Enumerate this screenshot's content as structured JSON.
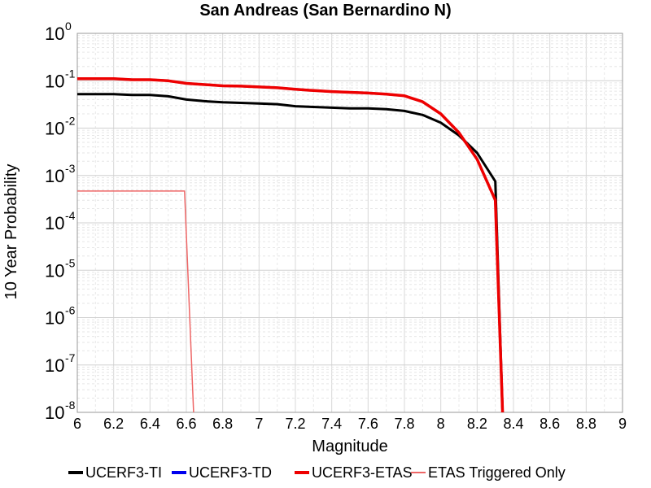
{
  "chart_data": {
    "type": "line",
    "title": "San Andreas (San Bernardino N)",
    "xlabel": "Magnitude",
    "ylabel": "10 Year Probability",
    "xlim": [
      6,
      9
    ],
    "ylim": [
      1e-08,
      1
    ],
    "yscale": "log",
    "grid": true,
    "legend_position": "bottom",
    "x_ticks": [
      "6",
      "6.2",
      "6.4",
      "6.6",
      "6.8",
      "7",
      "7.2",
      "7.4",
      "7.6",
      "7.8",
      "8",
      "8.2",
      "8.4",
      "8.6",
      "8.8",
      "9"
    ],
    "y_ticks": [
      {
        "base": "10",
        "exp": "0",
        "value": 1
      },
      {
        "base": "10",
        "exp": "-1",
        "value": 0.1
      },
      {
        "base": "10",
        "exp": "-2",
        "value": 0.01
      },
      {
        "base": "10",
        "exp": "-3",
        "value": 0.001
      },
      {
        "base": "10",
        "exp": "-4",
        "value": 0.0001
      },
      {
        "base": "10",
        "exp": "-5",
        "value": 1e-05
      },
      {
        "base": "10",
        "exp": "-6",
        "value": 1e-06
      },
      {
        "base": "10",
        "exp": "-7",
        "value": 1e-07
      },
      {
        "base": "10",
        "exp": "-8",
        "value": 1e-08
      }
    ],
    "series": [
      {
        "name": "UCERF3-TI",
        "color": "#000000",
        "x": [
          6.0,
          6.2,
          6.3,
          6.4,
          6.5,
          6.6,
          6.7,
          6.8,
          6.9,
          7.0,
          7.1,
          7.2,
          7.3,
          7.4,
          7.5,
          7.6,
          7.7,
          7.8,
          7.9,
          8.0,
          8.1,
          8.2,
          8.3,
          8.34
        ],
        "y": [
          0.052,
          0.052,
          0.05,
          0.05,
          0.047,
          0.04,
          0.037,
          0.035,
          0.034,
          0.033,
          0.032,
          0.029,
          0.028,
          0.027,
          0.026,
          0.026,
          0.025,
          0.023,
          0.019,
          0.013,
          0.007,
          0.003,
          0.00075,
          1e-08
        ]
      },
      {
        "name": "UCERF3-TD",
        "color": "#0000ee",
        "x": [
          6.0,
          6.2,
          6.3,
          6.4,
          6.5,
          6.6,
          6.7,
          6.8,
          6.9,
          7.0,
          7.1,
          7.2,
          7.3,
          7.4,
          7.5,
          7.6,
          7.7,
          7.8,
          7.9,
          8.0,
          8.1,
          8.2,
          8.3,
          8.34
        ],
        "y": [
          0.11,
          0.11,
          0.105,
          0.105,
          0.1,
          0.088,
          0.083,
          0.078,
          0.077,
          0.074,
          0.071,
          0.066,
          0.062,
          0.059,
          0.057,
          0.055,
          0.052,
          0.048,
          0.036,
          0.02,
          0.008,
          0.0022,
          0.0003,
          1e-08
        ]
      },
      {
        "name": "UCERF3-ETAS",
        "color": "#ee0000",
        "x": [
          6.0,
          6.2,
          6.3,
          6.4,
          6.5,
          6.6,
          6.7,
          6.8,
          6.9,
          7.0,
          7.1,
          7.2,
          7.3,
          7.4,
          7.5,
          7.6,
          7.7,
          7.8,
          7.9,
          8.0,
          8.1,
          8.2,
          8.3,
          8.34
        ],
        "y": [
          0.11,
          0.11,
          0.105,
          0.105,
          0.1,
          0.088,
          0.083,
          0.078,
          0.077,
          0.074,
          0.071,
          0.066,
          0.062,
          0.059,
          0.057,
          0.055,
          0.052,
          0.048,
          0.036,
          0.02,
          0.008,
          0.0022,
          0.0003,
          1e-08
        ]
      },
      {
        "name": "ETAS Triggered Only",
        "color": "#ee6666",
        "x": [
          6.0,
          6.59,
          6.64
        ],
        "y": [
          0.00047,
          0.00047,
          1e-08
        ]
      }
    ]
  }
}
